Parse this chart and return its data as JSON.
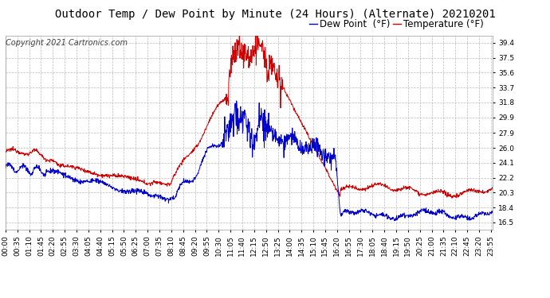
{
  "title": "Outdoor Temp / Dew Point by Minute (24 Hours) (Alternate) 20210201",
  "copyright": "Copyright 2021 Cartronics.com",
  "legend_dew": "Dew Point  (°F)",
  "legend_temp": "Temperature (°F)",
  "dew_color": "#0000cc",
  "temp_color": "#cc0000",
  "background_color": "#ffffff",
  "grid_color": "#bbbbbb",
  "ylim": [
    15.6,
    40.3
  ],
  "yticks": [
    16.5,
    18.4,
    20.3,
    22.2,
    24.1,
    26.0,
    27.9,
    29.9,
    31.8,
    33.7,
    35.6,
    37.5,
    39.4
  ],
  "title_fontsize": 10,
  "tick_fontsize": 6.5,
  "legend_fontsize": 8.5,
  "copyright_fontsize": 7
}
